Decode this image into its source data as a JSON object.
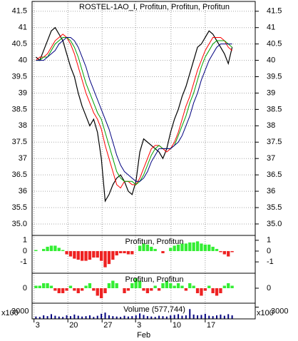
{
  "chart_data": [
    {
      "type": "line",
      "title": "ROSTEL-1AO_I, Profitun, Profitun, Profitun",
      "xlim": [
        -1,
        57
      ],
      "xticks": [
        {
          "value": -0.5,
          "label": "3"
        },
        {
          "value": 8.3,
          "label": "20"
        },
        {
          "value": 17.2,
          "label": "27"
        },
        {
          "value": 25.9,
          "label": "3"
        },
        {
          "value": 35.1,
          "label": "10"
        },
        {
          "value": 44,
          "label": "17"
        }
      ],
      "x_annotation": "Feb",
      "ylim": [
        34.65,
        41.8
      ],
      "yticks": [
        {
          "value": 35,
          "label": "35.0"
        },
        35.5,
        36,
        36.5,
        37,
        37.5,
        38,
        38.5,
        39,
        39.5,
        40,
        40.5,
        41,
        41.5
      ],
      "grid": true,
      "series": [
        {
          "name": "ROSTEL-1AO_I",
          "color": "#000000",
          "values": [
            40.1,
            40.0,
            40.3,
            40.6,
            40.9,
            41.0,
            40.8,
            40.6,
            40.2,
            39.8,
            39.5,
            39.0,
            38.6,
            38.3,
            38.0,
            38.2,
            37.8,
            37.0,
            35.7,
            35.9,
            36.2,
            36.4,
            36.5,
            36.3,
            36.0,
            35.9,
            36.3,
            37.2,
            37.6,
            37.5,
            37.4,
            37.3,
            37.2,
            37.0,
            37.3,
            37.8,
            38.2,
            38.5,
            38.9,
            39.2,
            39.6,
            40.0,
            40.4,
            40.5,
            40.7,
            40.9,
            40.8,
            40.6,
            40.4,
            40.2,
            39.9,
            40.4
          ]
        },
        {
          "name": "Profitun",
          "color": "#ff0000",
          "values": [
            40.0,
            40.1,
            40.1,
            40.2,
            40.4,
            40.6,
            40.7,
            40.8,
            40.7,
            40.5,
            40.2,
            39.8,
            39.4,
            39.0,
            38.7,
            38.4,
            38.2,
            37.9,
            37.4,
            37.0,
            36.6,
            36.2,
            36.1,
            36.3,
            36.3,
            36.2,
            36.2,
            36.4,
            36.7,
            37.0,
            37.3,
            37.4,
            37.4,
            37.3,
            37.2,
            37.3,
            37.5,
            37.8,
            38.2,
            38.6,
            38.9,
            39.3,
            39.7,
            40.0,
            40.3,
            40.5,
            40.7,
            40.7,
            40.7,
            40.6,
            40.4,
            40.3
          ]
        },
        {
          "name": "Profitun",
          "color": "#00a000",
          "values": [
            40.0,
            40.0,
            40.1,
            40.1,
            40.3,
            40.5,
            40.6,
            40.7,
            40.7,
            40.6,
            40.4,
            40.1,
            39.7,
            39.3,
            39.0,
            38.7,
            38.4,
            38.2,
            37.8,
            37.4,
            37.0,
            36.6,
            36.4,
            36.3,
            36.3,
            36.3,
            36.2,
            36.3,
            36.5,
            36.8,
            37.1,
            37.3,
            37.4,
            37.3,
            37.3,
            37.3,
            37.4,
            37.7,
            38.0,
            38.3,
            38.7,
            39.0,
            39.4,
            39.8,
            40.1,
            40.3,
            40.5,
            40.6,
            40.6,
            40.6,
            40.5,
            40.4
          ]
        },
        {
          "name": "Profitun",
          "color": "#000080",
          "values": [
            40.0,
            40.0,
            40.0,
            40.1,
            40.2,
            40.3,
            40.5,
            40.6,
            40.7,
            40.7,
            40.6,
            40.4,
            40.1,
            39.8,
            39.4,
            39.1,
            38.8,
            38.5,
            38.2,
            37.9,
            37.5,
            37.1,
            36.8,
            36.6,
            36.5,
            36.4,
            36.3,
            36.3,
            36.4,
            36.6,
            36.9,
            37.1,
            37.3,
            37.3,
            37.3,
            37.3,
            37.4,
            37.5,
            37.7,
            38.0,
            38.3,
            38.7,
            39.0,
            39.4,
            39.7,
            40.0,
            40.2,
            40.4,
            40.5,
            40.5,
            40.5,
            40.5
          ]
        }
      ]
    },
    {
      "type": "histogram-bars",
      "title": "Profitun, Profitun",
      "up_color": "#33ee33",
      "down_color": "#ee2222",
      "ylim": [
        -2.05,
        1.45
      ],
      "yticks": [
        -1,
        0,
        1
      ],
      "values": [
        0.1,
        0.0,
        0.2,
        0.4,
        0.5,
        0.5,
        0.3,
        0.1,
        -0.3,
        -0.5,
        -0.7,
        -0.8,
        -0.9,
        -0.9,
        -0.8,
        -0.6,
        -0.6,
        -0.9,
        -1.5,
        -1.2,
        -0.8,
        -0.4,
        -0.2,
        -0.2,
        -0.3,
        -0.3,
        0.0,
        0.5,
        0.7,
        0.6,
        0.4,
        0.2,
        0.0,
        -0.2,
        0.0,
        0.3,
        0.5,
        0.6,
        0.7,
        0.7,
        0.8,
        0.8,
        0.9,
        0.7,
        0.6,
        0.6,
        0.4,
        0.2,
        -0.1,
        -0.3,
        -0.5,
        -0.1
      ]
    },
    {
      "type": "histogram-bars",
      "title": "Profitun, Profitun",
      "up_color": "#33ee33",
      "down_color": "#ee2222",
      "ylim": [
        -0.6,
        0.6
      ],
      "yticks": [
        0
      ],
      "values": [
        0.1,
        0.1,
        0.2,
        0.2,
        0.1,
        -0.1,
        -0.2,
        -0.2,
        -0.1,
        0.1,
        -0.1,
        -0.2,
        -0.1,
        0.1,
        0.2,
        -0.1,
        -0.3,
        -0.4,
        -0.2,
        0.2,
        0.3,
        0.2,
        0.0,
        -0.2,
        -0.1,
        0.2,
        0.4,
        0.3,
        -0.1,
        -0.2,
        -0.1,
        0.1,
        -0.1,
        0.2,
        0.3,
        0.2,
        0.1,
        0.2,
        0.1,
        -0.1,
        0.2,
        0.1,
        -0.2,
        -0.3,
        -0.1,
        0.1,
        -0.2,
        -0.3,
        -0.2,
        0.1,
        0.2,
        0.1
      ]
    },
    {
      "type": "volume",
      "title": "Volume (577,744)",
      "unit_label": "x100",
      "color": "#000080",
      "ylim": [
        0,
        4000
      ],
      "yticks": [
        3000
      ],
      "values": [
        600,
        500,
        900,
        700,
        1200,
        800,
        600,
        500,
        900,
        700,
        1100,
        800,
        600,
        700,
        900,
        500,
        800,
        1300,
        1600,
        900,
        700,
        600,
        500,
        800,
        600,
        700,
        900,
        1400,
        1000,
        700,
        600,
        500,
        800,
        700,
        600,
        900,
        1000,
        1200,
        800,
        900,
        2500,
        1100,
        900,
        1000,
        1300,
        800,
        700,
        900,
        1100,
        800,
        1200,
        900
      ]
    }
  ]
}
